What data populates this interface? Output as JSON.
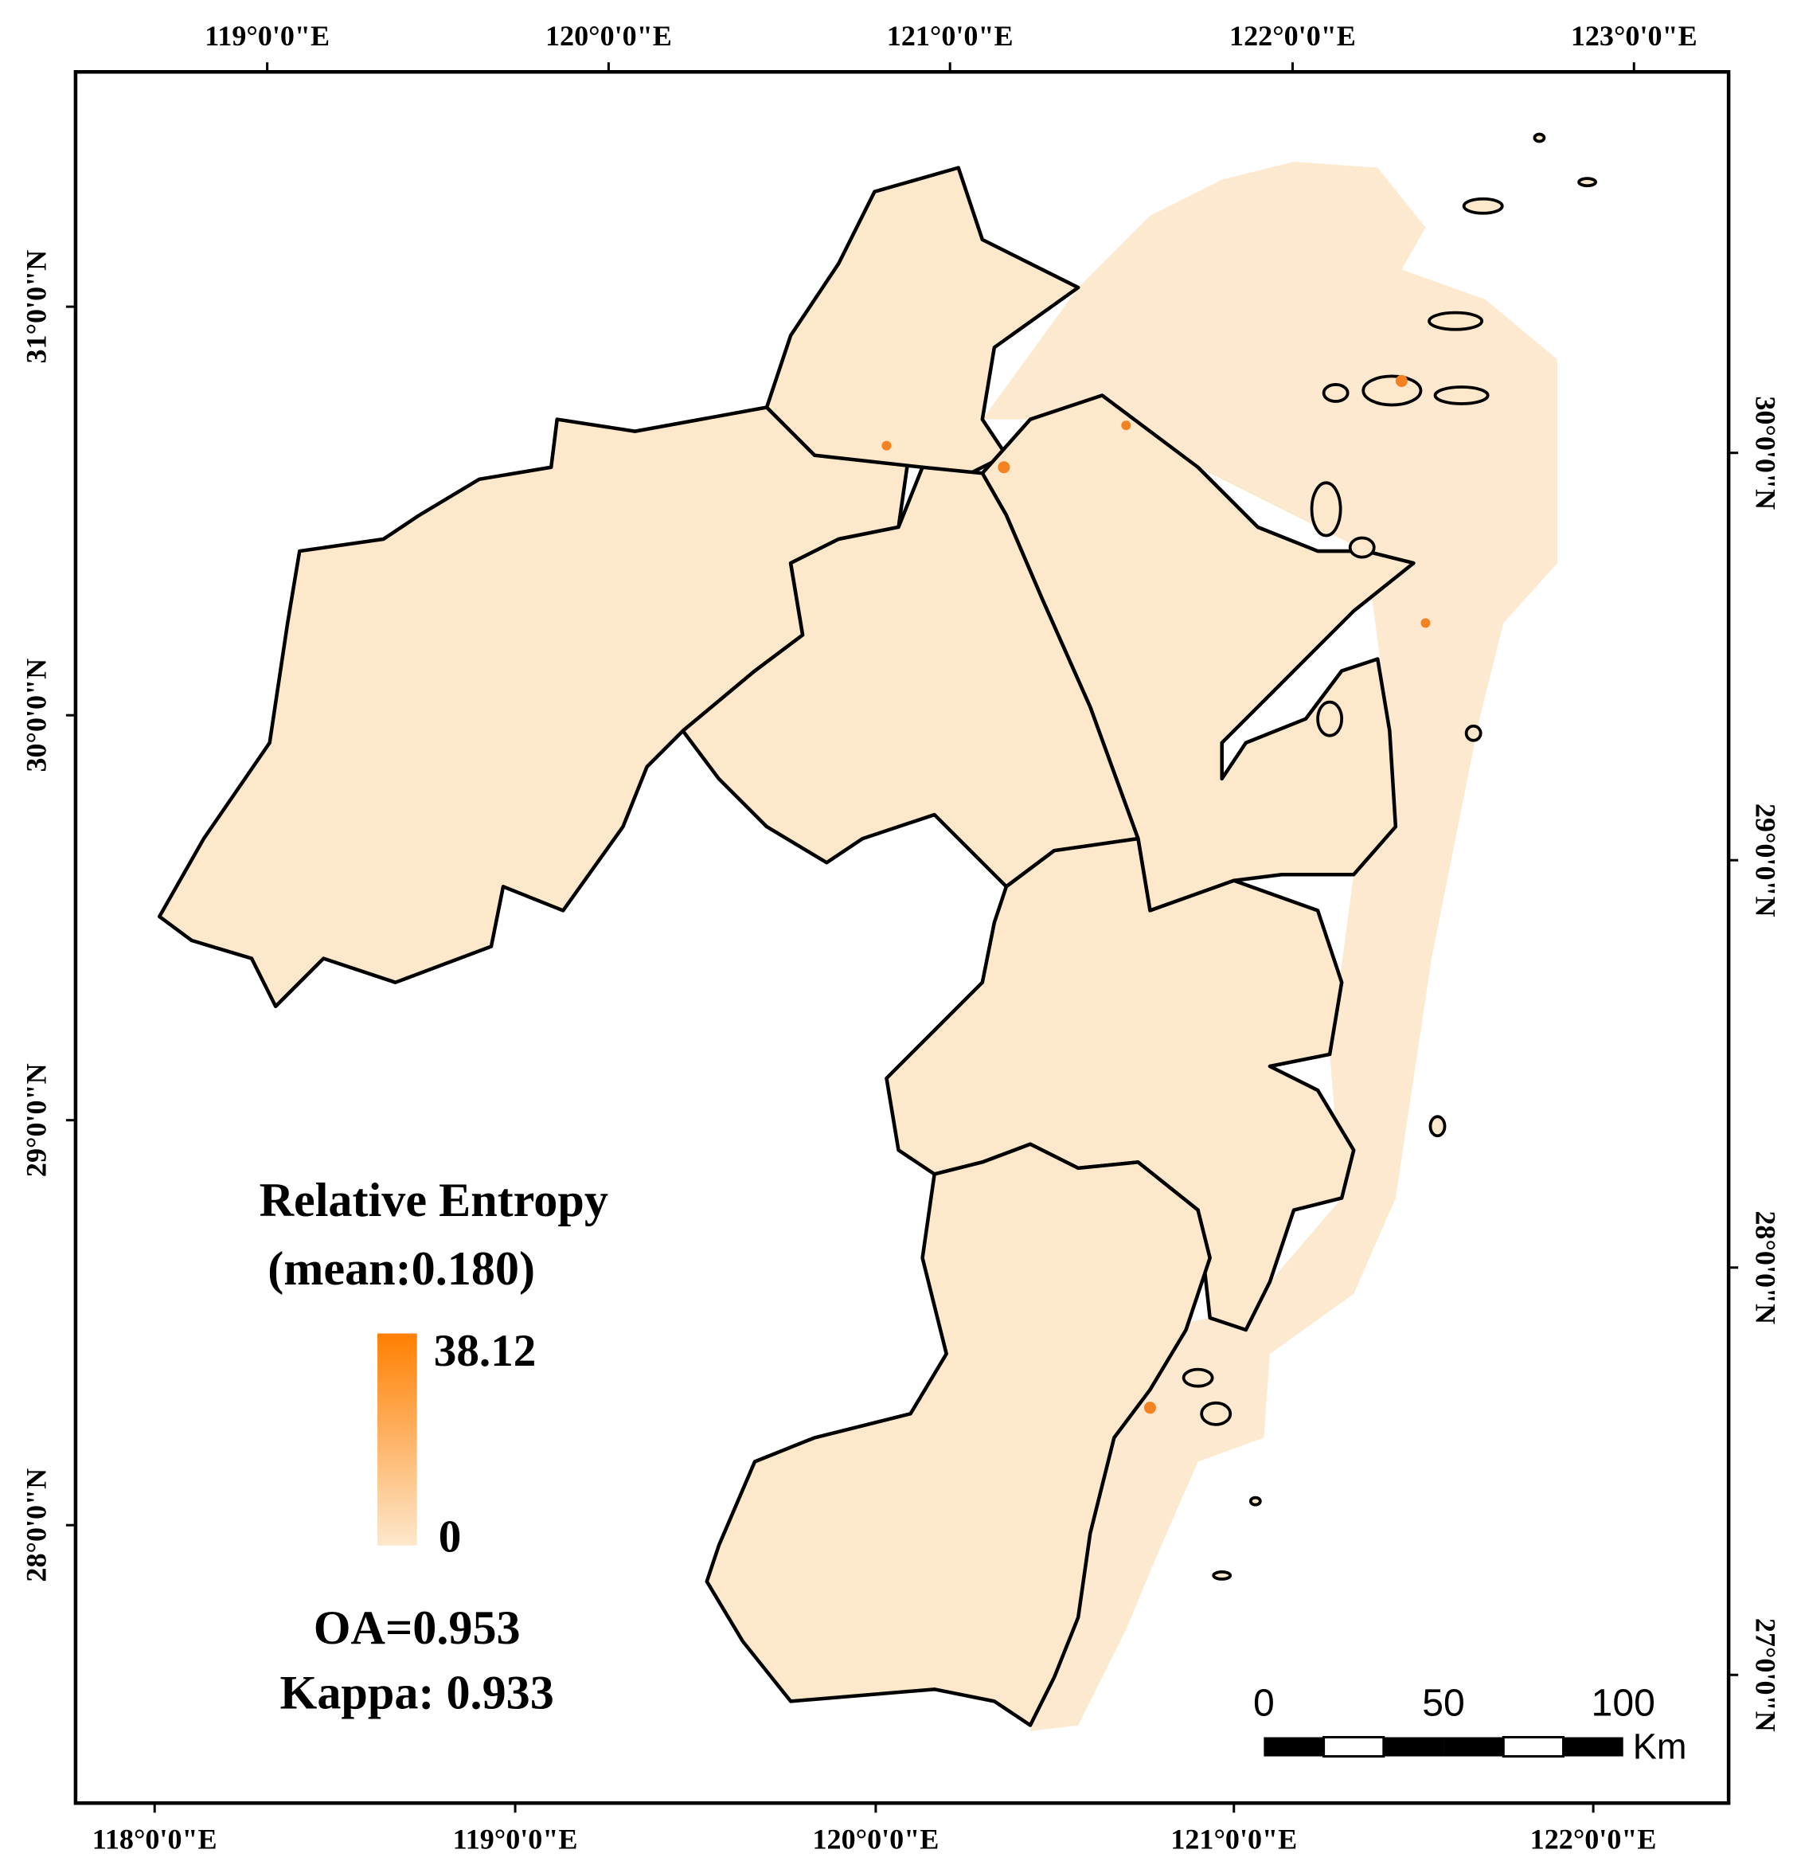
{
  "map": {
    "top_labels": [
      "119°0'0\"E",
      "120°0'0\"E",
      "121°0'0\"E",
      "122°0'0\"E",
      "123°0'0\"E"
    ],
    "bottom_labels": [
      "118°0'0\"E",
      "119°0'0\"E",
      "120°0'0\"E",
      "121°0'0\"E",
      "122°0'0\"E"
    ],
    "left_labels": [
      "31°0'0\"N",
      "30°0'0\"N",
      "29°0'0\"N",
      "28°0'0\"N"
    ],
    "right_labels": [
      "30°0'0\"N",
      "29°0'0\"N",
      "28°0'0\"N",
      "27°0'0\"N"
    ],
    "legend": {
      "title": "Relative Entropy",
      "subtitle": "(mean:0.180)",
      "max": 38.12,
      "min": 0
    },
    "oa": "OA=0.953",
    "kappa": "Kappa: 0.933",
    "scale_bar": {
      "ticks": [
        0,
        50,
        100
      ],
      "unit": "Km"
    }
  }
}
